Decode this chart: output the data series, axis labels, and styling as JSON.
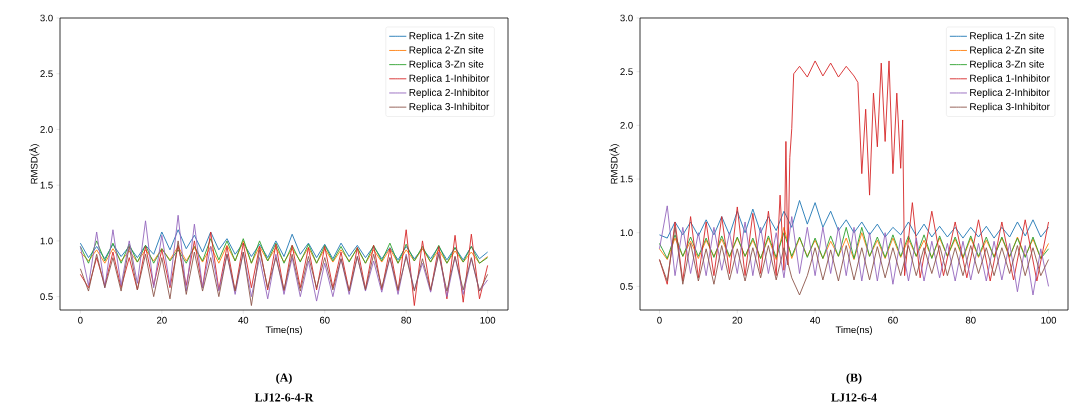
{
  "chart_data": [
    {
      "type": "line",
      "xlabel": "Time(ns)",
      "ylabel": "RMSD(Å)",
      "legend": "top right",
      "xlim": [
        -5,
        105
      ],
      "ylim": [
        0.38,
        3.0
      ],
      "xticks": [
        0,
        20,
        40,
        60,
        80,
        100
      ],
      "yticks": [
        0.5,
        {
          "value": 1.0,
          "label": "1.0"
        },
        1.5,
        {
          "value": 2.0,
          "label": "2.0"
        },
        2.5,
        {
          "value": 3.0,
          "label": "3.0"
        }
      ],
      "annotations": [
        "(A)",
        "LJ12-6-4-R"
      ],
      "x": [
        0,
        2,
        4,
        6,
        8,
        10,
        12,
        14,
        16,
        18,
        20,
        22,
        24,
        26,
        28,
        30,
        32,
        34,
        36,
        38,
        40,
        42,
        44,
        46,
        48,
        50,
        52,
        54,
        56,
        58,
        60,
        62,
        64,
        66,
        68,
        70,
        72,
        74,
        76,
        78,
        80,
        82,
        84,
        86,
        88,
        90,
        92,
        94,
        96,
        98,
        100
      ],
      "series": [
        {
          "name": "Replica 1-Zn site",
          "color": "#1f77b4",
          "values": [
            0.98,
            0.85,
            0.95,
            0.84,
            0.97,
            0.86,
            0.95,
            0.85,
            0.96,
            0.88,
            1.08,
            0.92,
            1.1,
            0.93,
            1.05,
            0.9,
            1.08,
            0.92,
            1.02,
            0.88,
            0.98,
            0.86,
            0.97,
            0.85,
            1.0,
            0.86,
            1.06,
            0.88,
            0.98,
            0.85,
            0.97,
            0.84,
            0.98,
            0.86,
            0.96,
            0.85,
            0.95,
            0.84,
            0.94,
            0.83,
            0.95,
            0.84,
            0.93,
            0.84,
            0.95,
            0.83,
            0.94,
            0.83,
            0.95,
            0.84,
            0.9
          ]
        },
        {
          "name": "Replica 2-Zn site",
          "color": "#ff7f0e",
          "values": [
            0.9,
            0.82,
            0.92,
            0.8,
            0.93,
            0.82,
            0.91,
            0.81,
            0.92,
            0.82,
            0.93,
            0.83,
            0.95,
            0.82,
            0.94,
            0.81,
            0.95,
            0.8,
            0.96,
            0.82,
            1.0,
            0.8,
            0.95,
            0.82,
            0.94,
            0.81,
            0.93,
            0.82,
            0.94,
            0.8,
            0.93,
            0.81,
            0.92,
            0.82,
            0.93,
            0.8,
            0.92,
            0.81,
            0.93,
            0.8,
            0.92,
            0.82,
            0.93,
            0.81,
            0.92,
            0.8,
            0.91,
            0.81,
            0.9,
            0.8,
            0.86
          ]
        },
        {
          "name": "Replica 3-Zn site",
          "color": "#2ca02c",
          "values": [
            0.95,
            0.8,
            1.0,
            0.82,
            0.98,
            0.8,
            0.97,
            0.81,
            0.96,
            0.8,
            0.93,
            0.82,
            0.92,
            0.8,
            0.95,
            0.82,
            1.02,
            0.83,
            1.0,
            0.82,
            1.02,
            0.8,
            1.0,
            0.82,
            0.98,
            0.8,
            0.96,
            0.81,
            0.97,
            0.8,
            0.96,
            0.82,
            0.95,
            0.81,
            0.94,
            0.8,
            0.96,
            0.82,
            0.98,
            0.8,
            0.97,
            0.82,
            0.95,
            0.81,
            0.96,
            0.8,
            0.94,
            0.81,
            0.95,
            0.8,
            0.85
          ]
        },
        {
          "name": "Replica 1-Inhibitor",
          "color": "#d62728",
          "values": [
            0.7,
            0.58,
            0.85,
            0.6,
            0.9,
            0.58,
            0.85,
            0.56,
            0.95,
            0.6,
            0.92,
            0.58,
            0.96,
            0.6,
            1.0,
            0.58,
            1.08,
            0.56,
            0.95,
            0.55,
            0.98,
            0.58,
            0.95,
            0.56,
            0.97,
            0.55,
            0.96,
            0.58,
            0.94,
            0.56,
            0.95,
            0.58,
            0.9,
            0.55,
            0.94,
            0.57,
            0.96,
            0.56,
            0.93,
            0.55,
            1.1,
            0.42,
            1.0,
            0.55,
            0.95,
            0.48,
            1.05,
            0.45,
            1.06,
            0.48,
            0.78
          ]
        },
        {
          "name": "Replica 2-Inhibitor",
          "color": "#9467bd",
          "values": [
            0.95,
            0.6,
            1.08,
            0.58,
            1.1,
            0.6,
            1.0,
            0.62,
            1.18,
            0.58,
            1.05,
            0.6,
            1.23,
            0.55,
            1.15,
            0.58,
            0.95,
            0.55,
            0.88,
            0.52,
            0.9,
            0.5,
            0.85,
            0.48,
            0.88,
            0.52,
            0.85,
            0.5,
            0.82,
            0.46,
            0.8,
            0.5,
            0.84,
            0.52,
            0.86,
            0.55,
            0.82,
            0.54,
            0.85,
            0.52,
            0.88,
            0.56,
            0.8,
            0.54,
            0.9,
            0.5,
            0.86,
            0.52,
            0.84,
            0.55,
            0.65
          ]
        },
        {
          "name": "Replica 3-Inhibitor",
          "color": "#8c564b",
          "values": [
            0.75,
            0.55,
            0.88,
            0.58,
            0.85,
            0.55,
            0.95,
            0.56,
            0.88,
            0.5,
            0.85,
            0.48,
            1.0,
            0.52,
            0.9,
            0.55,
            0.85,
            0.5,
            0.88,
            0.55,
            0.9,
            0.42,
            0.92,
            0.58,
            0.85,
            0.56,
            0.88,
            0.55,
            0.86,
            0.58,
            0.85,
            0.56,
            0.84,
            0.55,
            0.86,
            0.56,
            0.88,
            0.58,
            0.85,
            0.56,
            0.86,
            0.55,
            0.84,
            0.56,
            0.88,
            0.55,
            0.86,
            0.56,
            0.85,
            0.55,
            0.7
          ]
        }
      ]
    },
    {
      "type": "line",
      "xlabel": "Time(ns)",
      "ylabel": "RMSD(Å)",
      "legend": "top right",
      "xlim": [
        -5,
        105
      ],
      "ylim": [
        0.28,
        3.0
      ],
      "xticks": [
        0,
        20,
        40,
        60,
        80,
        100
      ],
      "yticks": [
        0.5,
        {
          "value": 1.0,
          "label": "1.0"
        },
        1.5,
        {
          "value": 2.0,
          "label": "2.0"
        },
        2.5,
        {
          "value": 3.0,
          "label": "3.0"
        }
      ],
      "annotations": [
        "(B)",
        "LJ12-6-4"
      ],
      "x": [
        0,
        2,
        4,
        6,
        8,
        10,
        12,
        14,
        16,
        18,
        20,
        22,
        24,
        26,
        28,
        30,
        32,
        34,
        36,
        38,
        40,
        42,
        44,
        46,
        48,
        50,
        52,
        54,
        56,
        58,
        60,
        62,
        64,
        66,
        68,
        70,
        72,
        74,
        76,
        78,
        80,
        82,
        84,
        86,
        88,
        90,
        92,
        94,
        96,
        98,
        100
      ],
      "series": [
        {
          "name": "Replica 1-Zn site",
          "color": "#1f77b4",
          "values": [
            0.98,
            0.95,
            1.1,
            0.98,
            1.1,
            0.97,
            1.12,
            0.98,
            1.15,
            0.98,
            1.2,
            1.0,
            1.22,
            1.0,
            1.15,
            1.02,
            1.2,
            1.05,
            1.3,
            1.08,
            1.28,
            1.05,
            1.2,
            1.02,
            1.12,
            1.0,
            1.1,
            0.98,
            1.08,
            0.96,
            1.05,
            0.98,
            1.1,
            0.97,
            1.08,
            0.96,
            1.06,
            0.96,
            1.05,
            0.95,
            1.05,
            0.96,
            1.06,
            0.95,
            1.05,
            0.96,
            1.1,
            0.97,
            1.12,
            0.96,
            1.05
          ]
        },
        {
          "name": "Replica 2-Zn site",
          "color": "#ff7f0e",
          "values": [
            0.85,
            0.75,
            0.95,
            0.78,
            0.92,
            0.76,
            0.93,
            0.78,
            0.94,
            0.77,
            0.95,
            0.78,
            0.93,
            0.76,
            0.95,
            0.75,
            1.05,
            0.76,
            0.95,
            0.78,
            0.93,
            0.76,
            0.92,
            0.78,
            0.95,
            0.75,
            1.0,
            0.78,
            0.93,
            0.76,
            0.95,
            0.77,
            0.94,
            0.78,
            0.93,
            0.77,
            0.95,
            0.78,
            0.94,
            0.76,
            0.95,
            0.77,
            0.93,
            0.78,
            0.95,
            0.77,
            0.96,
            0.78,
            0.94,
            0.76,
            0.9
          ]
        },
        {
          "name": "Replica 3-Zn site",
          "color": "#2ca02c",
          "values": [
            0.9,
            0.76,
            0.98,
            0.78,
            0.96,
            0.78,
            0.95,
            0.77,
            0.97,
            0.78,
            0.96,
            0.78,
            0.95,
            0.76,
            0.97,
            0.77,
            1.0,
            0.78,
            0.96,
            0.77,
            0.95,
            0.76,
            0.97,
            0.78,
            1.05,
            0.76,
            1.05,
            0.78,
            0.96,
            0.77,
            0.98,
            0.78,
            0.97,
            0.78,
            0.98,
            0.76,
            0.97,
            0.78,
            0.96,
            0.77,
            0.97,
            0.78,
            0.96,
            0.77,
            0.96,
            0.78,
            0.95,
            0.77,
            0.96,
            0.76,
            0.85
          ]
        },
        {
          "name": "Replica 1-Inhibitor",
          "color": "#d62728",
          "x": [
            0,
            2,
            4,
            6,
            8,
            10,
            12,
            14,
            16,
            18,
            20,
            22,
            24,
            26,
            28,
            30,
            31,
            32,
            32.5,
            33,
            33.5,
            34,
            34.5,
            36,
            38,
            40,
            42,
            44,
            46,
            48,
            50,
            51,
            52,
            53,
            54,
            55,
            56,
            57,
            58,
            59,
            60,
            61,
            62,
            62.5,
            63,
            65,
            67,
            70,
            73,
            76,
            79,
            82,
            85,
            88,
            91,
            94,
            97,
            100
          ],
          "values": [
            0.75,
            0.52,
            1.1,
            0.55,
            1.15,
            0.58,
            1.1,
            0.6,
            1.15,
            0.62,
            1.24,
            0.6,
            1.18,
            0.62,
            1.2,
            0.6,
            1.35,
            0.65,
            1.85,
            0.7,
            1.7,
            1.97,
            2.48,
            2.55,
            2.45,
            2.6,
            2.46,
            2.58,
            2.45,
            2.55,
            2.46,
            2.4,
            1.55,
            2.15,
            1.35,
            2.3,
            1.8,
            2.58,
            1.85,
            2.6,
            1.55,
            2.3,
            1.6,
            2.05,
            0.6,
            1.28,
            0.58,
            1.2,
            0.6,
            1.1,
            0.58,
            1.12,
            0.55,
            1.1,
            0.56,
            1.12,
            0.55,
            1.1
          ]
        },
        {
          "name": "Replica 2-Inhibitor",
          "color": "#9467bd",
          "values": [
            0.85,
            1.25,
            0.6,
            1.05,
            0.62,
            1.0,
            0.6,
            1.05,
            0.65,
            1.0,
            0.62,
            1.1,
            0.6,
            1.05,
            0.62,
            1.0,
            0.58,
            1.15,
            0.62,
            1.05,
            0.6,
            1.05,
            0.62,
            1.05,
            0.6,
            1.05,
            0.55,
            1.0,
            0.55,
            1.0,
            0.52,
            0.95,
            0.55,
            0.95,
            0.55,
            0.92,
            0.58,
            0.9,
            0.55,
            0.92,
            0.56,
            0.9,
            0.55,
            0.92,
            0.56,
            0.9,
            0.45,
            0.88,
            0.42,
            0.85,
            0.5
          ]
        },
        {
          "name": "Replica 3-Inhibitor",
          "color": "#8c564b",
          "values": [
            0.75,
            0.55,
            1.05,
            0.52,
            0.9,
            0.55,
            0.85,
            0.52,
            0.88,
            0.56,
            0.85,
            0.55,
            0.86,
            0.58,
            0.88,
            0.56,
            0.86,
            0.58,
            0.42,
            0.6,
            0.86,
            0.56,
            0.84,
            0.55,
            0.88,
            0.56,
            0.86,
            0.56,
            0.87,
            0.58,
            0.86,
            0.6,
            0.88,
            0.6,
            0.86,
            0.62,
            0.88,
            0.6,
            0.86,
            0.6,
            0.88,
            0.62,
            0.86,
            0.6,
            0.86,
            0.62,
            0.88,
            0.6,
            0.86,
            0.6,
            0.75
          ]
        }
      ]
    }
  ]
}
